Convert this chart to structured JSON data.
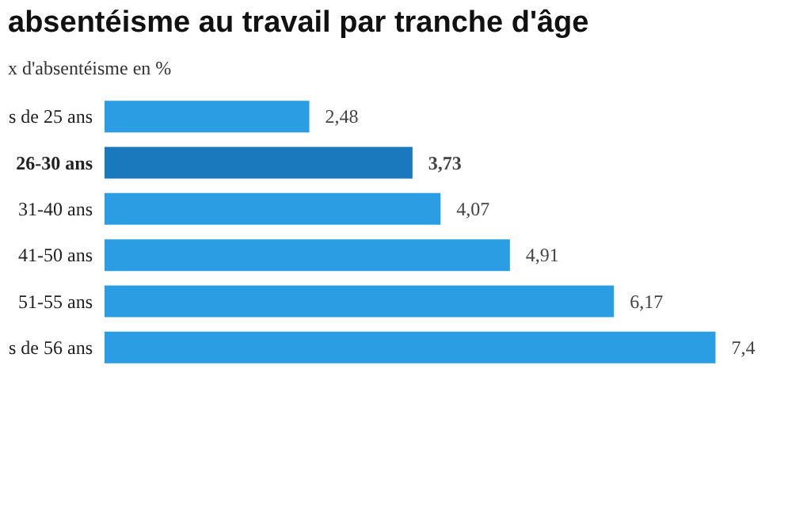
{
  "chart_data": {
    "type": "bar",
    "orientation": "horizontal",
    "title": "absentéisme au travail par tranche d'âge",
    "subtitle": "x d'absentéisme en %",
    "categories": [
      "s de 25 ans",
      "26-30 ans",
      "31-40 ans",
      "41-50 ans",
      "51-55 ans",
      "s de 56 ans"
    ],
    "values": [
      2.48,
      3.73,
      4.07,
      4.91,
      6.17,
      7.4
    ],
    "value_labels": [
      "2,48",
      "3,73",
      "4,07",
      "4,91",
      "6,17",
      "7,4"
    ],
    "colors": [
      "#2a9de3",
      "#1a78bd",
      "#2a9de3",
      "#2a9de3",
      "#2a9de3",
      "#2a9de3"
    ],
    "grid": false
  }
}
